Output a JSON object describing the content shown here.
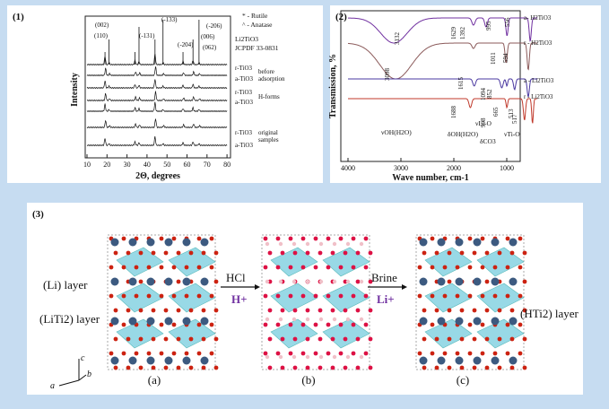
{
  "panel1": {
    "label": "(1)",
    "y_label": "Intensity",
    "x_label": "2Θ, degrees",
    "x_ticks": [
      "10",
      "20",
      "30",
      "40",
      "50",
      "60",
      "70",
      "80"
    ],
    "peaks": [
      "(002)",
      "(110)",
      "(-131)",
      "(-133)",
      "(-204)",
      "(006)",
      "(-206)",
      "(062)"
    ],
    "legend": [
      "* - Rutile",
      "^ - Anatase",
      "Li2TiO3",
      "JCPDF 33-0831"
    ],
    "traces": [
      "r-TiO3",
      "a-TiO3",
      "r-TiO3",
      "a-TiO3",
      "r-TiO3",
      "a-TiO3"
    ],
    "groups": [
      "before",
      "adsorption",
      "H-forms",
      "original",
      "samples"
    ]
  },
  "panel2": {
    "label": "(2)",
    "y_label": "Transmission, %",
    "x_label": "Wave number, cm-1",
    "x_ticks": [
      "4000",
      "3000",
      "2000",
      "1000"
    ],
    "traces": [
      "a- H2TiO3",
      "r - H2TiO3",
      "a - Li2TiO3",
      "r - Li2TiO3"
    ],
    "peaks": [
      "3132",
      "1629",
      "1392",
      "995",
      "556",
      "3098",
      "1011",
      "594",
      "1615",
      "1094",
      "1688",
      "998",
      "852",
      "665",
      "513",
      "517"
    ],
    "assignments": [
      "νOH(H2O)",
      "δOH(H2O)",
      "νLi-O",
      "δCO3",
      "νTi-O"
    ]
  },
  "panel3": {
    "label": "(3)",
    "layers": [
      "(Li) layer",
      "(LiTi2) layer",
      "(HTi2) layer"
    ],
    "steps": [
      "HCl",
      "H+",
      "Brine",
      "Li+"
    ],
    "structures": [
      "(a)",
      "(b)",
      "(c)"
    ],
    "axes": [
      "c",
      "a",
      "b"
    ]
  }
}
